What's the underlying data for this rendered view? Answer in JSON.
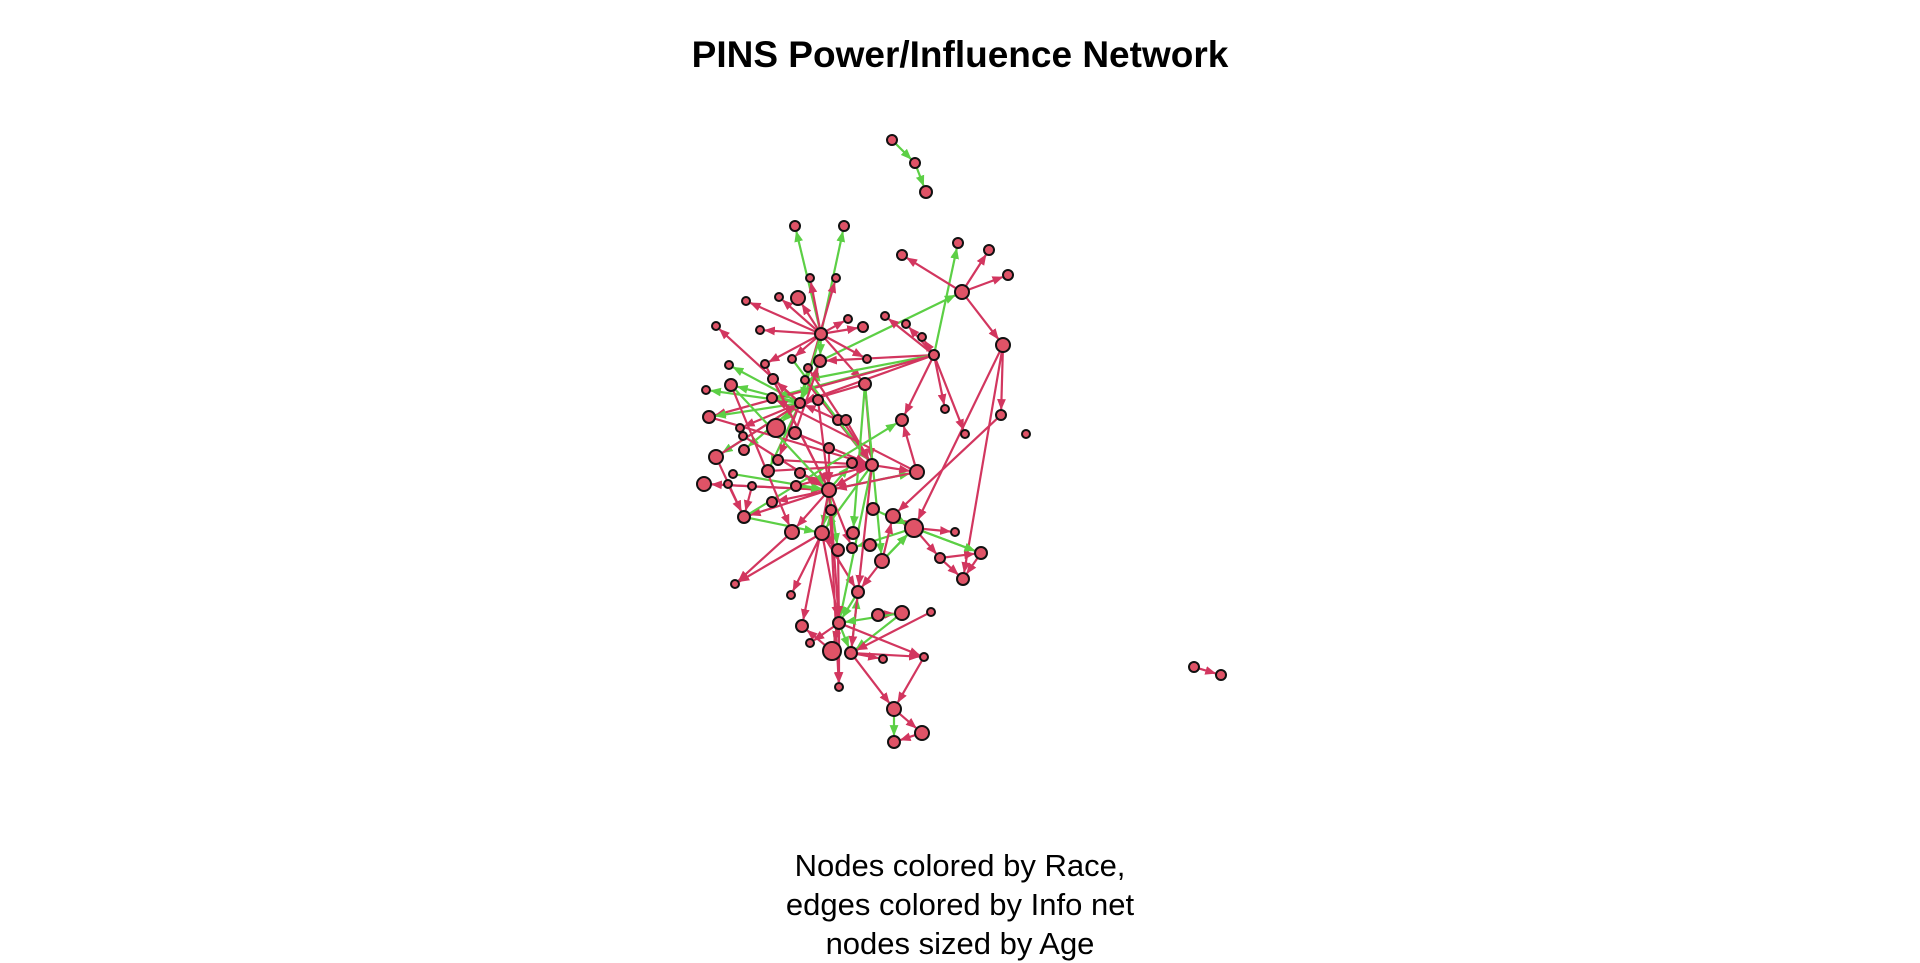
{
  "title": "PINS Power/Influence Network",
  "caption_lines": [
    "Nodes colored by Race,",
    "edges colored by Info net",
    "nodes sized by Age"
  ],
  "colors": {
    "node_fill": "#df5367",
    "node_stroke": "#111111",
    "edge_info": "#5ccf45",
    "edge_other": "#d2365f",
    "background": "#ffffff"
  },
  "legend_meaning": {
    "node_color": "Race",
    "edge_color": "Info net",
    "node_size": "Age"
  }
}
